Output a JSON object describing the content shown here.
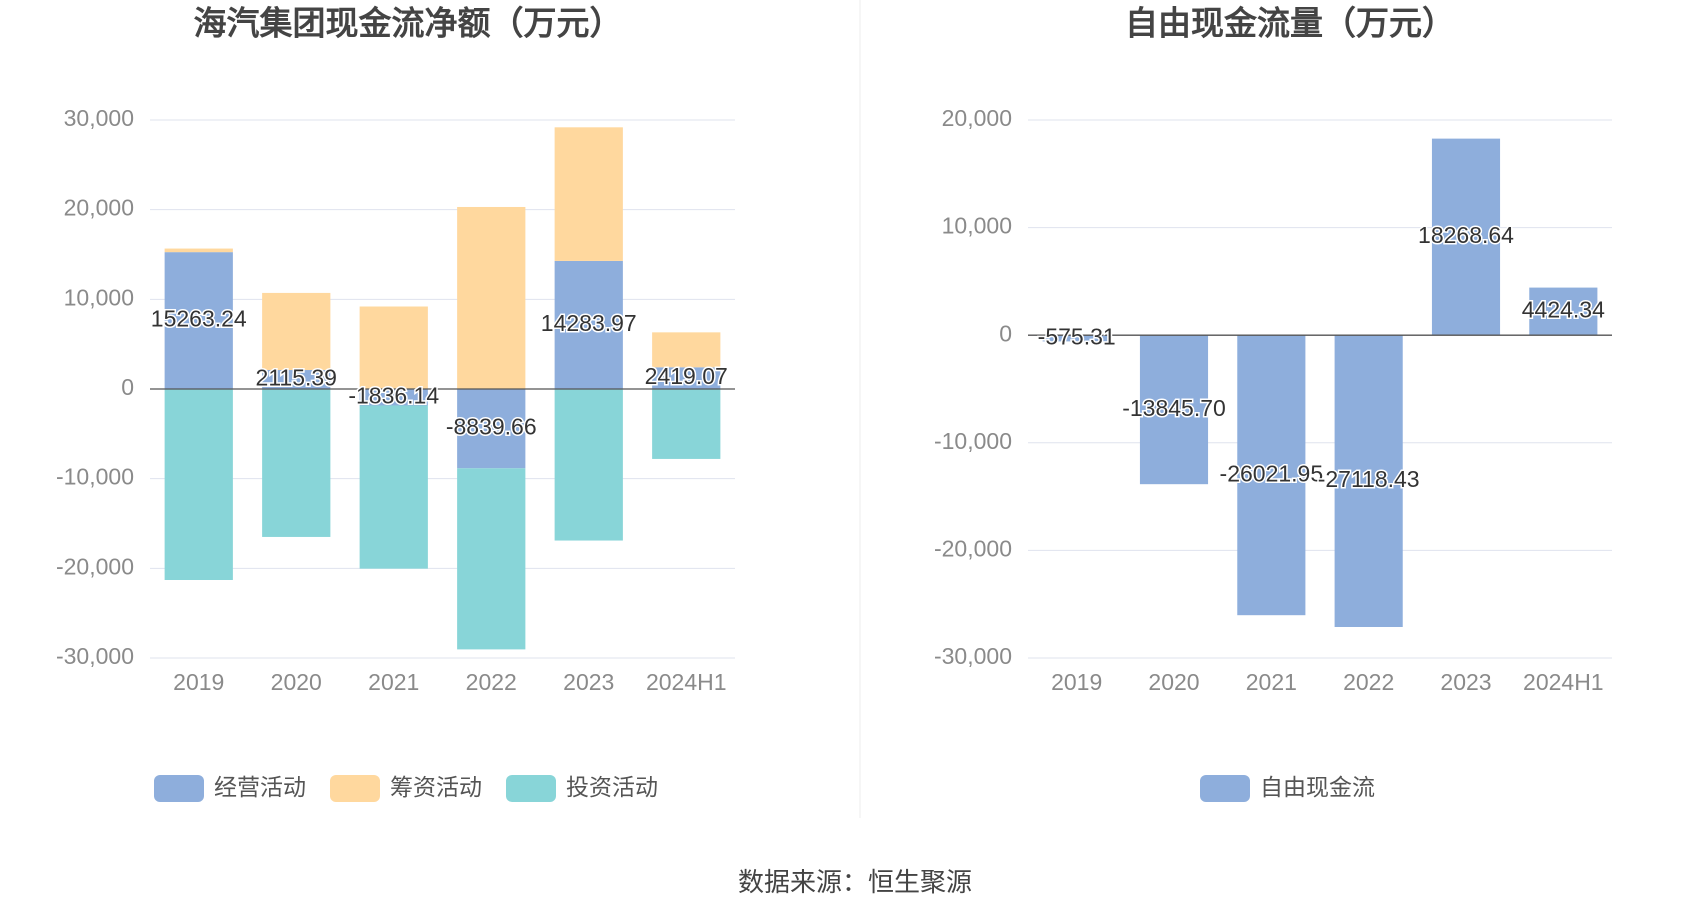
{
  "chart_data": [
    {
      "type": "bar",
      "title": "海汽集团现金流净额（万元）",
      "categories": [
        "2019",
        "2020",
        "2021",
        "2022",
        "2023",
        "2024H1"
      ],
      "series": [
        {
          "name": "经营活动",
          "color": "#8eaedc",
          "values": [
            15263.24,
            2115.39,
            -1836.14,
            -8839.66,
            14283.97,
            2419.07
          ],
          "labels": true
        },
        {
          "name": "筹资活动",
          "color": "#ffd89e",
          "values": [
            400,
            8600,
            9200,
            20300,
            14900,
            3900
          ]
        },
        {
          "name": "投资活动",
          "color": "#88d5d8",
          "values": [
            -21300,
            -16500,
            -18200,
            -20200,
            -16900,
            -7800
          ]
        }
      ],
      "stacked": true,
      "ylim": [
        -30000,
        30000
      ],
      "yticks": [
        {
          "value": -30000,
          "label": "-30,000"
        },
        {
          "value": -20000,
          "label": "-20,000"
        },
        {
          "value": -10000,
          "label": "-10,000"
        },
        0,
        {
          "value": 10000,
          "label": "10,000"
        },
        {
          "value": 20000,
          "label": "20,000"
        },
        {
          "value": 30000,
          "label": "30,000"
        }
      ],
      "grid": true
    },
    {
      "type": "bar",
      "title": "自由现金流量（万元）",
      "categories": [
        "2019",
        "2020",
        "2021",
        "2022",
        "2023",
        "2024H1"
      ],
      "series": [
        {
          "name": "自由现金流",
          "color": "#8eaedc",
          "values": [
            -575.31,
            -13845.7,
            -26021.95,
            -27118.43,
            18268.64,
            4424.34
          ],
          "value_labels": [
            "-575.31",
            "-13845.70",
            "-26021.95",
            "-27118.43",
            "18268.64",
            "4424.34"
          ],
          "labels": true
        }
      ],
      "ylim": [
        -30000,
        20000
      ],
      "yticks": [
        {
          "value": -30000,
          "label": "-30,000"
        },
        {
          "value": -20000,
          "label": "-20,000"
        },
        {
          "value": -10000,
          "label": "-10,000"
        },
        0,
        {
          "value": 10000,
          "label": "10,000"
        },
        {
          "value": 20000,
          "label": "20,000"
        }
      ],
      "grid": true
    }
  ],
  "source": "数据来源：恒生聚源"
}
